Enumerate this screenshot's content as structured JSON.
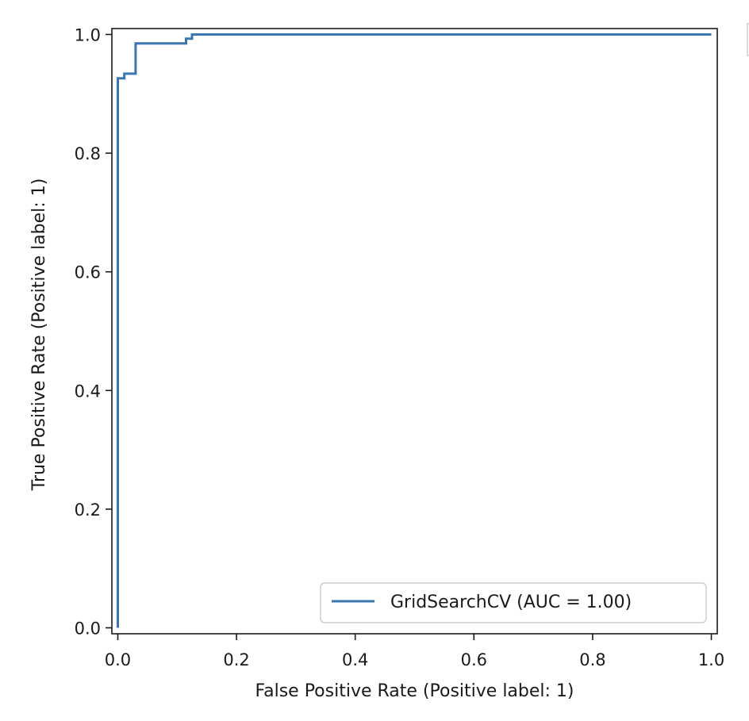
{
  "chart_data": {
    "type": "line",
    "title": "",
    "xlabel": "False Positive Rate (Positive label: 1)",
    "ylabel": "True Positive Rate (Positive label: 1)",
    "xlim": [
      -0.01,
      1.01
    ],
    "ylim": [
      -0.01,
      1.01
    ],
    "xticks": [
      "0.0",
      "0.2",
      "0.4",
      "0.6",
      "0.8",
      "1.0"
    ],
    "yticks": [
      "0.0",
      "0.2",
      "0.4",
      "0.6",
      "0.8",
      "1.0"
    ],
    "grid": false,
    "legend_position": "lower-right",
    "series": [
      {
        "name": "GridSearchCV (AUC = 1.00)",
        "color": "#3a76af",
        "x": [
          0.0,
          0.0,
          0.011,
          0.011,
          0.03,
          0.03,
          0.115,
          0.115,
          0.125,
          0.125,
          1.0
        ],
        "y": [
          0.0,
          0.926,
          0.926,
          0.934,
          0.934,
          0.985,
          0.985,
          0.993,
          0.993,
          1.0,
          1.0
        ]
      }
    ]
  }
}
